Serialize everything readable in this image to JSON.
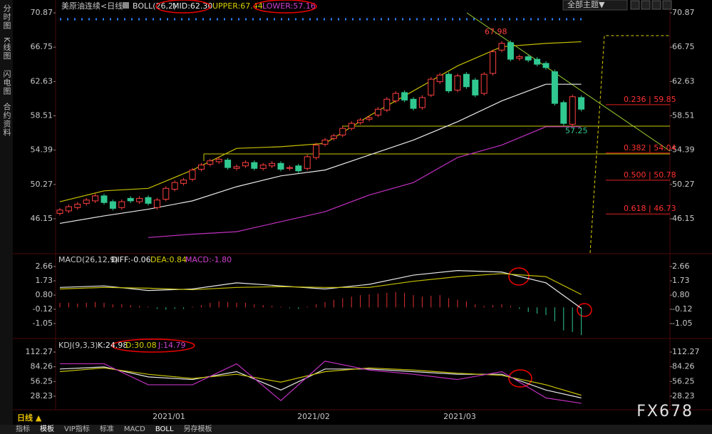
{
  "header": {
    "symbol": "美原油连续<日线>",
    "boll": "BOLL(26,2)",
    "mid": "MID:62.30",
    "upper": "UPPER:67.44",
    "lower": "LOWER:57.16",
    "theme": "全部主题▼"
  },
  "sidebar": [
    "分时图",
    "K线图",
    "闪电图",
    "合约资料"
  ],
  "price": {
    "yticks": [
      70.87,
      66.75,
      62.63,
      58.51,
      54.39,
      50.27,
      46.15
    ],
    "opens": [
      46.8,
      47.1,
      47.5,
      48.0,
      48.3,
      48.9,
      48.2,
      47.5,
      48.6,
      48.2,
      48.7,
      47.5,
      48.5,
      49.7,
      50.4,
      50.9,
      52.1,
      52.7,
      53.0,
      53.2,
      52.2,
      52.5,
      52.9,
      52.2,
      52.5,
      52.8,
      52.2,
      52.5,
      52.2,
      53.5,
      55.1,
      55.8,
      56.2,
      57.0,
      57.7,
      58.1,
      58.6,
      59.2,
      60.3,
      61.3,
      60.5,
      59.5,
      61.0,
      62.6,
      63.5,
      61.6,
      63.5,
      62.8,
      61.2,
      63.6,
      66.4,
      67.3,
      65.4,
      65.6,
      65.3,
      64.8,
      63.8,
      60.1,
      57.5,
      60.7
    ],
    "closes": [
      47.2,
      47.6,
      47.9,
      48.4,
      48.9,
      48.1,
      47.4,
      48.2,
      48.3,
      48.6,
      48.0,
      48.4,
      49.8,
      50.5,
      50.8,
      52.0,
      52.6,
      53.1,
      53.3,
      52.3,
      52.4,
      52.9,
      52.2,
      52.6,
      52.8,
      52.1,
      52.3,
      51.9,
      53.6,
      55.0,
      55.6,
      56.1,
      57.0,
      57.6,
      58.0,
      58.3,
      59.3,
      60.5,
      61.2,
      60.4,
      59.4,
      60.7,
      62.9,
      63.4,
      61.5,
      63.3,
      62.0,
      61.0,
      63.5,
      66.2,
      67.2,
      65.3,
      65.6,
      65.2,
      64.7,
      64.3,
      60.0,
      57.6,
      60.8,
      59.3
    ],
    "sample_x": [
      0,
      5,
      10,
      15,
      20,
      25,
      30,
      35,
      40,
      45,
      50,
      55,
      59
    ],
    "upper": [
      48.2,
      49.5,
      49.8,
      52.0,
      54.6,
      54.8,
      55.2,
      58.5,
      61.5,
      64.5,
      66.8,
      67.2,
      67.4
    ],
    "mid": [
      45.6,
      46.5,
      47.3,
      48.3,
      50.0,
      51.3,
      52.0,
      53.8,
      55.6,
      57.8,
      60.3,
      62.3,
      62.3
    ],
    "lower": [
      null,
      null,
      43.9,
      44.3,
      44.6,
      45.8,
      47.0,
      49.0,
      50.5,
      53.5,
      55.0,
      57.2,
      57.2
    ],
    "high_label": "67.98",
    "low_label": "57.25",
    "fib": [
      {
        "label": "0.236 | 59.85",
        "price": 59.85
      },
      {
        "label": "0.382 | 54.04",
        "price": 54.04
      },
      {
        "label": "0.500 | 50.78",
        "price": 50.78
      },
      {
        "label": "0.618 | 46.73",
        "price": 46.73
      }
    ]
  },
  "macd": {
    "title": "MACD(26,12,9)",
    "diff_label": "DIFF:-0.06",
    "dea_label": "DEA:0.84",
    "macd_label": "MACD:-1.80",
    "yticks": [
      2.66,
      1.73,
      {
        "value": 0.8,
        "label": "0.80"
      },
      -0.12,
      -1.05
    ],
    "hist": [
      0.3,
      0.3,
      0.25,
      0.3,
      0.35,
      0.3,
      0.2,
      0.2,
      0.15,
      0.1,
      0.05,
      -0.1,
      -0.15,
      -0.1,
      -0.1,
      0.05,
      0.15,
      0.3,
      0.4,
      0.35,
      0.3,
      0.3,
      0.2,
      0.15,
      0.1,
      0.05,
      -0.05,
      -0.1,
      0.05,
      0.2,
      0.35,
      0.5,
      0.6,
      0.7,
      0.8,
      0.85,
      0.9,
      0.95,
      1.0,
      0.95,
      0.8,
      0.7,
      0.75,
      0.8,
      0.6,
      0.5,
      0.4,
      0.2,
      0.1,
      0.15,
      0.2,
      0.1,
      -0.1,
      -0.3,
      -0.4,
      -0.5,
      -0.9,
      -1.5,
      -1.6,
      -1.8
    ],
    "diff": [
      1.3,
      1.4,
      1.1,
      1.2,
      1.6,
      1.4,
      1.2,
      1.5,
      2.1,
      2.4,
      2.3,
      1.6,
      -0.06
    ],
    "dea": [
      1.2,
      1.3,
      1.25,
      1.15,
      1.3,
      1.35,
      1.3,
      1.3,
      1.7,
      2.0,
      2.2,
      2.0,
      0.84
    ]
  },
  "kdj": {
    "title": "KDJ(9,3,3)",
    "k_label": "K:24.98",
    "d_label": "D:30.08",
    "j_label": "J:14.79",
    "yticks": [
      112.27,
      84.26,
      56.25,
      28.23
    ],
    "k": [
      80,
      84,
      65,
      60,
      75,
      40,
      80,
      80,
      75,
      70,
      70,
      40,
      24.98
    ],
    "d": [
      75,
      82,
      70,
      62,
      70,
      55,
      75,
      82,
      78,
      72,
      68,
      50,
      30.08
    ],
    "j": [
      90,
      90,
      50,
      50,
      90,
      20,
      95,
      78,
      70,
      60,
      75,
      25,
      14.79
    ]
  },
  "xlabels": [
    "2021/01",
    "2021/02",
    "2021/03"
  ],
  "footer": {
    "period": "日线 ▲",
    "tabs": [
      "指标",
      "模板",
      "VIP指标",
      "标准",
      "MACD",
      "BOLL",
      "另存模板"
    ]
  },
  "watermark": "FX678"
}
